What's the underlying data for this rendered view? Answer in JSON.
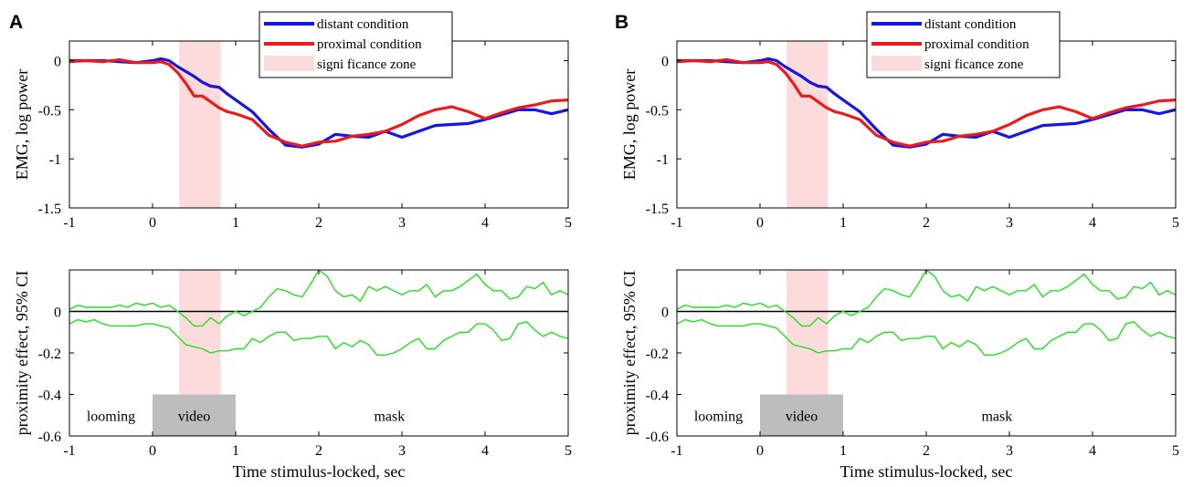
{
  "panels": [
    {
      "letter": "A"
    },
    {
      "letter": "B"
    }
  ],
  "colors": {
    "distant": "#1515e6",
    "proximal": "#ec1b1b",
    "significance": "#fbdbdb",
    "ci": "#1fe01f",
    "stimulus_box": "#bdbdbd"
  },
  "chart_data": [
    {
      "type": "line",
      "panel": "A-top",
      "title": "",
      "xlabel": "",
      "ylabel": "EMG, log power",
      "xlim": [
        -1,
        5
      ],
      "ylim": [
        -1.5,
        0.2
      ],
      "xticks": [
        "-1",
        "0",
        "1",
        "2",
        "3",
        "4",
        "5"
      ],
      "yticks": [
        "0",
        "-0.5",
        "-1",
        "-1.5"
      ],
      "legend_position": "top-right",
      "legend": [
        "distant condition",
        "proximal condition",
        "signi ficance zone"
      ],
      "significance_zone": [
        0.32,
        0.82
      ],
      "x": [
        -1.0,
        -0.8,
        -0.6,
        -0.4,
        -0.2,
        0.0,
        0.1,
        0.2,
        0.3,
        0.4,
        0.5,
        0.6,
        0.7,
        0.8,
        0.9,
        1.0,
        1.2,
        1.4,
        1.6,
        1.8,
        2.0,
        2.2,
        2.4,
        2.6,
        2.8,
        3.0,
        3.2,
        3.4,
        3.6,
        3.8,
        4.0,
        4.2,
        4.4,
        4.6,
        4.8,
        5.0
      ],
      "series": [
        {
          "name": "distant condition",
          "values": [
            0.0,
            0.0,
            0.0,
            -0.01,
            -0.02,
            0.0,
            0.02,
            0.0,
            -0.06,
            -0.11,
            -0.16,
            -0.22,
            -0.26,
            -0.27,
            -0.34,
            -0.4,
            -0.52,
            -0.7,
            -0.86,
            -0.88,
            -0.85,
            -0.75,
            -0.77,
            -0.78,
            -0.72,
            -0.78,
            -0.72,
            -0.66,
            -0.65,
            -0.64,
            -0.6,
            -0.55,
            -0.5,
            -0.5,
            -0.54,
            -0.5
          ]
        },
        {
          "name": "proximal condition",
          "values": [
            -0.01,
            0.0,
            -0.01,
            0.01,
            -0.02,
            -0.02,
            -0.01,
            -0.04,
            -0.12,
            -0.23,
            -0.36,
            -0.36,
            -0.42,
            -0.48,
            -0.52,
            -0.54,
            -0.6,
            -0.76,
            -0.83,
            -0.87,
            -0.83,
            -0.82,
            -0.77,
            -0.75,
            -0.72,
            -0.65,
            -0.56,
            -0.5,
            -0.47,
            -0.52,
            -0.59,
            -0.53,
            -0.48,
            -0.45,
            -0.41,
            -0.4
          ]
        }
      ]
    },
    {
      "type": "line",
      "panel": "A-bottom",
      "title": "",
      "xlabel": "Time stimulus-locked, sec",
      "ylabel": "proximity effect, 95% CI",
      "xlim": [
        -1,
        5
      ],
      "ylim": [
        -0.6,
        0.2
      ],
      "xticks": [
        "-1",
        "0",
        "1",
        "2",
        "3",
        "4",
        "5"
      ],
      "yticks": [
        "0",
        "-0.2",
        "-0.4",
        "-0.6"
      ],
      "significance_zone": [
        0.32,
        0.82
      ],
      "stimulus_labels": [
        {
          "label": "looming",
          "range": [
            -1,
            0
          ],
          "shaded": false
        },
        {
          "label": "video",
          "range": [
            0,
            1
          ],
          "shaded": true
        },
        {
          "label": "mask",
          "range": [
            1,
            5
          ],
          "shaded": false
        }
      ],
      "x": [
        -1.0,
        -0.9,
        -0.8,
        -0.7,
        -0.6,
        -0.5,
        -0.4,
        -0.3,
        -0.2,
        -0.1,
        0.0,
        0.1,
        0.2,
        0.3,
        0.4,
        0.5,
        0.6,
        0.7,
        0.8,
        0.9,
        1.0,
        1.1,
        1.2,
        1.3,
        1.4,
        1.5,
        1.6,
        1.7,
        1.8,
        1.9,
        2.0,
        2.1,
        2.2,
        2.3,
        2.4,
        2.5,
        2.6,
        2.7,
        2.8,
        2.9,
        3.0,
        3.1,
        3.2,
        3.3,
        3.4,
        3.5,
        3.6,
        3.7,
        3.8,
        3.9,
        4.0,
        4.1,
        4.2,
        4.3,
        4.4,
        4.5,
        4.6,
        4.7,
        4.8,
        4.9,
        5.0
      ],
      "series": [
        {
          "name": "",
          "values": [
            0.01,
            0.03,
            0.02,
            0.02,
            0.02,
            0.02,
            0.03,
            0.02,
            0.04,
            0.03,
            0.04,
            0.02,
            0.03,
            0.0,
            -0.03,
            -0.07,
            -0.07,
            -0.03,
            -0.06,
            -0.02,
            0.0,
            -0.02,
            0.0,
            0.02,
            0.07,
            0.11,
            0.1,
            0.08,
            0.07,
            0.13,
            0.2,
            0.17,
            0.1,
            0.07,
            0.08,
            0.05,
            0.12,
            0.1,
            0.12,
            0.1,
            0.08,
            0.1,
            0.1,
            0.13,
            0.07,
            0.1,
            0.1,
            0.12,
            0.15,
            0.18,
            0.13,
            0.1,
            0.1,
            0.06,
            0.07,
            0.12,
            0.11,
            0.14,
            0.08,
            0.1,
            0.08
          ]
        },
        {
          "name": "",
          "values": [
            -0.06,
            -0.04,
            -0.05,
            -0.04,
            -0.06,
            -0.07,
            -0.07,
            -0.07,
            -0.07,
            -0.06,
            -0.06,
            -0.07,
            -0.08,
            -0.12,
            -0.16,
            -0.17,
            -0.18,
            -0.2,
            -0.19,
            -0.19,
            -0.18,
            -0.18,
            -0.13,
            -0.15,
            -0.12,
            -0.1,
            -0.1,
            -0.14,
            -0.13,
            -0.13,
            -0.12,
            -0.12,
            -0.18,
            -0.15,
            -0.17,
            -0.14,
            -0.16,
            -0.21,
            -0.21,
            -0.2,
            -0.18,
            -0.15,
            -0.13,
            -0.18,
            -0.18,
            -0.14,
            -0.12,
            -0.1,
            -0.1,
            -0.06,
            -0.06,
            -0.09,
            -0.14,
            -0.13,
            -0.06,
            -0.05,
            -0.09,
            -0.12,
            -0.1,
            -0.12,
            -0.13
          ]
        }
      ]
    },
    {
      "type": "line",
      "panel": "B-top",
      "title": "",
      "xlabel": "",
      "ylabel": "EMG, log power",
      "xlim": [
        -1,
        5
      ],
      "ylim": [
        -1.5,
        0.2
      ],
      "xticks": [
        "-1",
        "0",
        "1",
        "2",
        "3",
        "4",
        "5"
      ],
      "yticks": [
        "0",
        "-0.5",
        "-1",
        "-1.5"
      ],
      "legend_position": "top-right",
      "legend": [
        "distant condition",
        "proximal condition",
        "signi ficance zone"
      ],
      "significance_zone": [
        0.32,
        0.82
      ],
      "x": [
        -1.0,
        -0.8,
        -0.6,
        -0.4,
        -0.2,
        0.0,
        0.1,
        0.2,
        0.3,
        0.4,
        0.5,
        0.6,
        0.7,
        0.8,
        0.9,
        1.0,
        1.2,
        1.4,
        1.6,
        1.8,
        2.0,
        2.2,
        2.4,
        2.6,
        2.8,
        3.0,
        3.2,
        3.4,
        3.6,
        3.8,
        4.0,
        4.2,
        4.4,
        4.6,
        4.8,
        5.0
      ],
      "series": [
        {
          "name": "distant condition",
          "values": [
            0.0,
            0.0,
            0.0,
            -0.01,
            -0.02,
            0.0,
            0.02,
            0.0,
            -0.06,
            -0.11,
            -0.16,
            -0.22,
            -0.26,
            -0.27,
            -0.34,
            -0.4,
            -0.52,
            -0.7,
            -0.86,
            -0.88,
            -0.85,
            -0.75,
            -0.77,
            -0.78,
            -0.72,
            -0.78,
            -0.72,
            -0.66,
            -0.65,
            -0.64,
            -0.6,
            -0.55,
            -0.5,
            -0.5,
            -0.54,
            -0.5
          ]
        },
        {
          "name": "proximal condition",
          "values": [
            -0.01,
            0.0,
            -0.01,
            0.01,
            -0.02,
            -0.02,
            -0.01,
            -0.04,
            -0.12,
            -0.23,
            -0.36,
            -0.36,
            -0.42,
            -0.48,
            -0.52,
            -0.54,
            -0.6,
            -0.76,
            -0.83,
            -0.87,
            -0.83,
            -0.82,
            -0.77,
            -0.75,
            -0.72,
            -0.65,
            -0.56,
            -0.5,
            -0.47,
            -0.52,
            -0.59,
            -0.53,
            -0.48,
            -0.45,
            -0.41,
            -0.4
          ]
        }
      ]
    },
    {
      "type": "line",
      "panel": "B-bottom",
      "title": "",
      "xlabel": "Time stimulus-locked, sec",
      "ylabel": "proximity effect, 95% CI",
      "xlim": [
        -1,
        5
      ],
      "ylim": [
        -0.6,
        0.2
      ],
      "xticks": [
        "-1",
        "0",
        "1",
        "2",
        "3",
        "4",
        "5"
      ],
      "yticks": [
        "0",
        "-0.2",
        "-0.4",
        "-0.6"
      ],
      "significance_zone": [
        0.32,
        0.82
      ],
      "stimulus_labels": [
        {
          "label": "looming",
          "range": [
            -1,
            0
          ],
          "shaded": false
        },
        {
          "label": "video",
          "range": [
            0,
            1
          ],
          "shaded": true
        },
        {
          "label": "mask",
          "range": [
            1,
            5
          ],
          "shaded": false
        }
      ],
      "x": [
        -1.0,
        -0.9,
        -0.8,
        -0.7,
        -0.6,
        -0.5,
        -0.4,
        -0.3,
        -0.2,
        -0.1,
        0.0,
        0.1,
        0.2,
        0.3,
        0.4,
        0.5,
        0.6,
        0.7,
        0.8,
        0.9,
        1.0,
        1.1,
        1.2,
        1.3,
        1.4,
        1.5,
        1.6,
        1.7,
        1.8,
        1.9,
        2.0,
        2.1,
        2.2,
        2.3,
        2.4,
        2.5,
        2.6,
        2.7,
        2.8,
        2.9,
        3.0,
        3.1,
        3.2,
        3.3,
        3.4,
        3.5,
        3.6,
        3.7,
        3.8,
        3.9,
        4.0,
        4.1,
        4.2,
        4.3,
        4.4,
        4.5,
        4.6,
        4.7,
        4.8,
        4.9,
        5.0
      ],
      "series": [
        {
          "name": "",
          "values": [
            0.01,
            0.03,
            0.02,
            0.02,
            0.02,
            0.02,
            0.03,
            0.02,
            0.04,
            0.03,
            0.04,
            0.02,
            0.03,
            0.0,
            -0.03,
            -0.07,
            -0.07,
            -0.03,
            -0.06,
            -0.02,
            0.0,
            -0.02,
            0.0,
            0.02,
            0.07,
            0.11,
            0.1,
            0.08,
            0.07,
            0.13,
            0.2,
            0.17,
            0.1,
            0.07,
            0.08,
            0.05,
            0.12,
            0.1,
            0.12,
            0.1,
            0.08,
            0.1,
            0.1,
            0.13,
            0.07,
            0.1,
            0.1,
            0.12,
            0.15,
            0.18,
            0.13,
            0.1,
            0.1,
            0.06,
            0.07,
            0.12,
            0.11,
            0.14,
            0.08,
            0.1,
            0.08
          ]
        },
        {
          "name": "",
          "values": [
            -0.06,
            -0.04,
            -0.05,
            -0.04,
            -0.06,
            -0.07,
            -0.07,
            -0.07,
            -0.07,
            -0.06,
            -0.06,
            -0.07,
            -0.08,
            -0.12,
            -0.16,
            -0.17,
            -0.18,
            -0.2,
            -0.19,
            -0.19,
            -0.18,
            -0.18,
            -0.13,
            -0.15,
            -0.12,
            -0.1,
            -0.1,
            -0.14,
            -0.13,
            -0.13,
            -0.12,
            -0.12,
            -0.18,
            -0.15,
            -0.17,
            -0.14,
            -0.16,
            -0.21,
            -0.21,
            -0.2,
            -0.18,
            -0.15,
            -0.13,
            -0.18,
            -0.18,
            -0.14,
            -0.12,
            -0.1,
            -0.1,
            -0.06,
            -0.06,
            -0.09,
            -0.14,
            -0.13,
            -0.06,
            -0.05,
            -0.09,
            -0.12,
            -0.1,
            -0.12,
            -0.13
          ]
        }
      ]
    }
  ]
}
